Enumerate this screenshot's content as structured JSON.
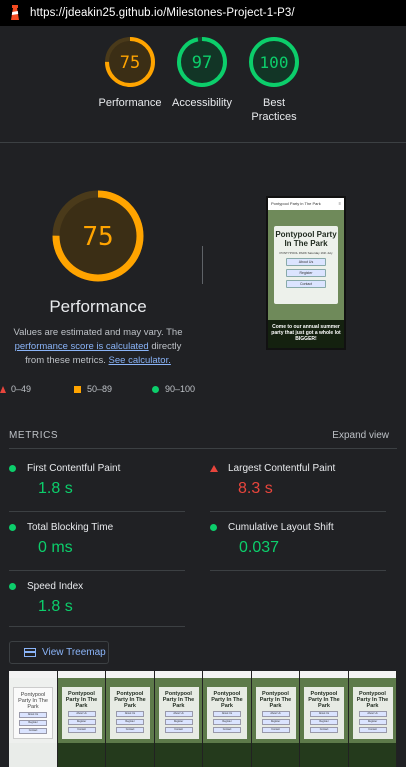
{
  "browser": {
    "url": "https://jdeakin25.github.io/Milestones-Project-1-P3/",
    "logo": "lighthouse-icon"
  },
  "summary": [
    {
      "score": "75",
      "label": "Performance",
      "color": "#ffa400",
      "fraction": 0.75
    },
    {
      "score": "97",
      "label": "Accessibility",
      "color": "#0cce6b",
      "fraction": 0.97
    },
    {
      "score": "100",
      "label": "Best Practices",
      "color": "#0cce6b",
      "fraction": 1.0
    }
  ],
  "performance": {
    "score": "75",
    "fraction": 0.75,
    "color": "#ffa400",
    "title": "Performance",
    "note_prefix": "Values are estimated and may vary. The ",
    "note_link1": "performance score is calculated",
    "note_mid": " directly from these metrics. ",
    "note_link2": "See calculator."
  },
  "legend": {
    "fail": "0–49",
    "average": "50–89",
    "pass": "90–100"
  },
  "preview": {
    "site_name": "Pontypool Party in The Park",
    "hero_title": "Pontypool Party In The Park",
    "hero_sub": "PONTYPOOL PARK Saturday 16th July",
    "btn1": "About Us",
    "btn2": "Register",
    "btn3": "Contact",
    "footer": "Come to our annual summer party that just got a whole lot BIGGER!"
  },
  "metrics": {
    "title": "METRICS",
    "expand": "Expand view",
    "items": [
      {
        "label": "First Contentful Paint",
        "value": "1.8 s",
        "status": "pass"
      },
      {
        "label": "Largest Contentful Paint",
        "value": "8.3 s",
        "status": "fail"
      },
      {
        "label": "Total Blocking Time",
        "value": "0 ms",
        "status": "pass"
      },
      {
        "label": "Cumulative Layout Shift",
        "value": "0.037",
        "status": "pass"
      },
      {
        "label": "Speed Index",
        "value": "1.8 s",
        "status": "pass"
      }
    ]
  },
  "treemap": {
    "label": "View Treemap",
    "icon": "treemap-icon"
  },
  "filmstrip": {
    "first_title": "Pontypool Party In The Park",
    "frame_title": "Pontypool Party In The Park",
    "btn1": "About Us",
    "btn2": "Register",
    "btn3": "Contact"
  }
}
